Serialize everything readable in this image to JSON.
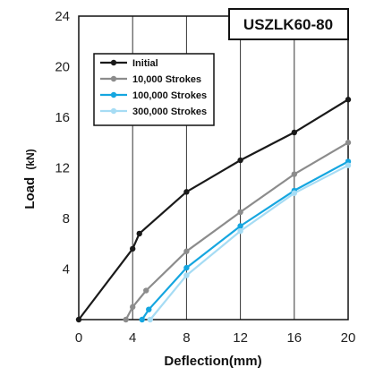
{
  "chart_data": {
    "type": "line",
    "title": "USZLK60-80",
    "xlabel": "Deflection(mm)",
    "ylabel_main": "Load",
    "ylabel_unit": "(kN)",
    "xlim": [
      0,
      20
    ],
    "ylim": [
      0,
      24
    ],
    "x_ticks": [
      0,
      4,
      8,
      12,
      16,
      20
    ],
    "y_ticks": [
      4,
      8,
      12,
      16,
      20,
      24
    ],
    "grid": "vertical",
    "legend_position": "top-left",
    "series": [
      {
        "name": "Initial",
        "color": "#1a1a1a",
        "x": [
          0,
          4,
          4.5,
          8,
          12,
          16,
          20
        ],
        "y": [
          0,
          5.6,
          6.8,
          10.1,
          12.6,
          14.8,
          17.4
        ]
      },
      {
        "name": "10,000 Strokes",
        "color": "#8c8c8c",
        "x": [
          3.5,
          4,
          5,
          8,
          12,
          16,
          20
        ],
        "y": [
          0,
          1.0,
          2.3,
          5.4,
          8.5,
          11.5,
          14.0
        ]
      },
      {
        "name": "100,000 Strokes",
        "color": "#15a6e0",
        "x": [
          4.7,
          5.2,
          8,
          12,
          16,
          20
        ],
        "y": [
          0,
          0.8,
          4.1,
          7.4,
          10.2,
          12.5
        ]
      },
      {
        "name": "300,000 Strokes",
        "color": "#a6dcf4",
        "x": [
          5.3,
          8,
          12,
          16,
          20
        ],
        "y": [
          0,
          3.5,
          7.0,
          10.0,
          12.2
        ]
      }
    ]
  }
}
